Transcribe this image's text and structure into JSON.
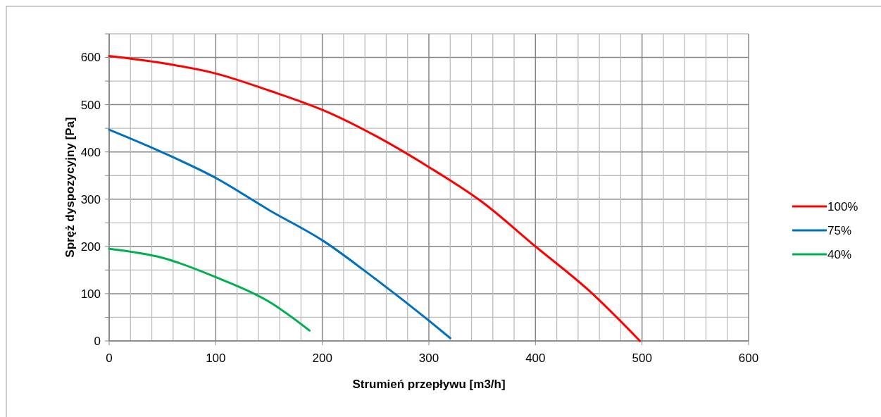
{
  "chart_data": {
    "type": "line",
    "xlabel": "Strumień przepływu [m3/h]",
    "ylabel": "Spręż dyspozycyjny [Pa]",
    "xlim": [
      0,
      600
    ],
    "xticks": [
      0,
      {
        "value": 20,
        "label": null
      },
      {
        "value": 40,
        "label": null
      },
      {
        "value": 60,
        "label": null
      },
      {
        "value": 80,
        "label": null
      },
      100,
      {
        "value": 120,
        "label": null
      },
      {
        "value": 140,
        "label": null
      },
      {
        "value": 160,
        "label": null
      },
      {
        "value": 180,
        "label": null
      },
      200,
      {
        "value": 220,
        "label": null
      },
      {
        "value": 240,
        "label": null
      },
      {
        "value": 260,
        "label": null
      },
      {
        "value": 280,
        "label": null
      },
      300,
      {
        "value": 320,
        "label": null
      },
      {
        "value": 340,
        "label": null
      },
      {
        "value": 360,
        "label": null
      },
      {
        "value": 380,
        "label": null
      },
      400,
      {
        "value": 420,
        "label": null
      },
      {
        "value": 440,
        "label": null
      },
      {
        "value": 460,
        "label": null
      },
      {
        "value": 480,
        "label": null
      },
      500,
      {
        "value": 520,
        "label": null
      },
      {
        "value": 540,
        "label": null
      },
      {
        "value": 560,
        "label": null
      },
      {
        "value": 580,
        "label": null
      },
      600
    ],
    "ylim": [
      0,
      650
    ],
    "yticks": [
      0,
      {
        "value": 50,
        "label": null
      },
      100,
      {
        "value": 150,
        "label": null
      },
      200,
      {
        "value": 250,
        "label": null
      },
      300,
      {
        "value": 350,
        "label": null
      },
      400,
      {
        "value": 450,
        "label": null
      },
      500,
      {
        "value": 550,
        "label": null
      },
      600,
      {
        "value": 650,
        "label": null
      }
    ],
    "grid": true,
    "legend": "right",
    "marker": "none",
    "line_style": "solid",
    "series": [
      {
        "name": "100%",
        "color": "#ff0000",
        "x": [
          0,
          50,
          100,
          150,
          200,
          250,
          300,
          350,
          400,
          450,
          498
        ],
        "values": [
          603,
          588,
          566,
          530,
          489,
          434,
          368,
          294,
          200,
          107,
          0
        ]
      },
      {
        "name": "75%",
        "color": "#0070c0",
        "x": [
          0,
          50,
          100,
          150,
          200,
          250,
          300,
          320
        ],
        "values": [
          447,
          399,
          345,
          277,
          213,
          131,
          43,
          6
        ]
      },
      {
        "name": "40%",
        "color": "#00b050",
        "x": [
          0,
          50,
          100,
          150,
          188
        ],
        "values": [
          195,
          176,
          135,
          83,
          22
        ]
      }
    ]
  }
}
